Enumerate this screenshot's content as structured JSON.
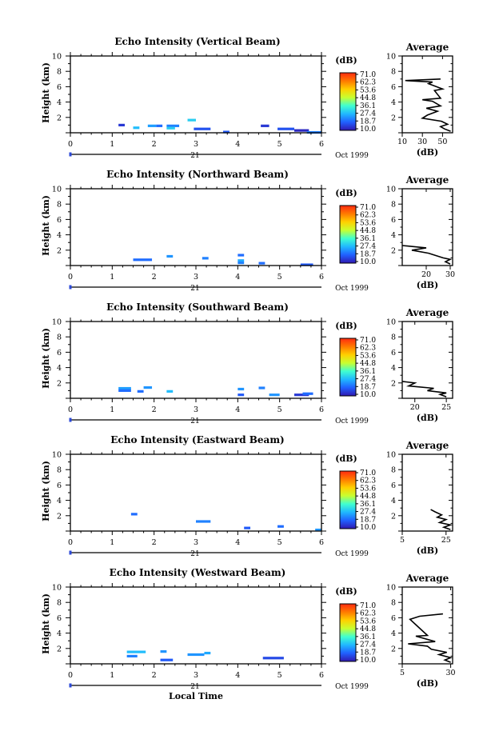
{
  "figure": {
    "ylabel": "Height (km)",
    "xlabel_bottom": "Local Time",
    "colorbar_unit": "(dB)",
    "colorbar_ticks": [
      "71.0",
      "62.3",
      "53.6",
      "44.8",
      "36.1",
      "27.4",
      "18.7",
      "10.0"
    ],
    "colorbar_colors": [
      "#ff2a10",
      "#ff7a00",
      "#ffd000",
      "#c8ff30",
      "#40ffd0",
      "#20b8ff",
      "#2060ff",
      "#3018b0"
    ],
    "date_day": "21",
    "date_month_year": "Oct 1999",
    "avg_title": "Average",
    "avg_xlabel": "(dB)",
    "line_color": "#000000"
  },
  "chart_data": [
    {
      "type": "heatmap",
      "title": "Echo Intensity (Vertical Beam)",
      "ylabel": "Height (km)",
      "xlim": [
        0,
        6
      ],
      "ylim": [
        0,
        10
      ],
      "xticks": [
        "0",
        "1",
        "2",
        "3",
        "4",
        "5",
        "6"
      ],
      "yticks": [
        "2",
        "4",
        "6",
        "8",
        "10"
      ],
      "colorbar": {
        "label": "(dB)",
        "min": 10.0,
        "max": 71.0
      },
      "echoes": [
        {
          "t0": 1.15,
          "t1": 1.3,
          "h": 1.0,
          "db": 14
        },
        {
          "t0": 1.5,
          "t1": 1.65,
          "h": 0.65,
          "db": 28
        },
        {
          "t0": 1.85,
          "t1": 2.05,
          "h": 0.9,
          "db": 25
        },
        {
          "t0": 2.05,
          "t1": 2.2,
          "h": 0.9,
          "db": 20
        },
        {
          "t0": 2.3,
          "t1": 2.6,
          "h": 0.9,
          "db": 22
        },
        {
          "t0": 2.3,
          "t1": 2.5,
          "h": 0.6,
          "db": 30
        },
        {
          "t0": 2.8,
          "t1": 3.0,
          "h": 1.65,
          "db": 30
        },
        {
          "t0": 2.95,
          "t1": 3.35,
          "h": 0.5,
          "db": 17
        },
        {
          "t0": 3.65,
          "t1": 3.8,
          "h": 0.1,
          "db": 18
        },
        {
          "t0": 4.55,
          "t1": 4.75,
          "h": 0.9,
          "db": 14
        },
        {
          "t0": 4.95,
          "t1": 5.35,
          "h": 0.5,
          "db": 17
        },
        {
          "t0": 5.35,
          "t1": 5.7,
          "h": 0.3,
          "db": 12
        },
        {
          "t0": 5.65,
          "t1": 6.0,
          "h": 0.05,
          "db": 22
        }
      ],
      "average": {
        "title": "Average",
        "xlabel": "(dB)",
        "xlim": [
          10,
          60
        ],
        "xticks": [
          "10",
          "30",
          "50"
        ],
        "yticks": [
          "2",
          "4",
          "6",
          "8",
          "10"
        ],
        "profile": [
          {
            "db": 58,
            "h": 0.2
          },
          {
            "db": 52,
            "h": 0.5
          },
          {
            "db": 48,
            "h": 0.8
          },
          {
            "db": 55,
            "h": 1.1
          },
          {
            "db": 49,
            "h": 1.5
          },
          {
            "db": 30,
            "h": 1.9
          },
          {
            "db": 35,
            "h": 2.3
          },
          {
            "db": 45,
            "h": 2.8
          },
          {
            "db": 34,
            "h": 3.2
          },
          {
            "db": 48,
            "h": 3.5
          },
          {
            "db": 40,
            "h": 4.1
          },
          {
            "db": 30,
            "h": 4.3
          },
          {
            "db": 48,
            "h": 4.5
          },
          {
            "db": 42,
            "h": 5.5
          },
          {
            "db": 50,
            "h": 5.7
          },
          {
            "db": 36,
            "h": 6.4
          },
          {
            "db": 40,
            "h": 6.6
          },
          {
            "db": 13,
            "h": 6.8
          },
          {
            "db": 48,
            "h": 7.0
          }
        ]
      }
    },
    {
      "type": "heatmap",
      "title": "Echo Intensity (Northward Beam)",
      "ylabel": "Height (km)",
      "xlim": [
        0,
        6
      ],
      "ylim": [
        0,
        10
      ],
      "xticks": [
        "0",
        "1",
        "2",
        "3",
        "4",
        "5",
        "6"
      ],
      "yticks": [
        "2",
        "4",
        "6",
        "8",
        "10"
      ],
      "colorbar": {
        "label": "(dB)",
        "min": 10.0,
        "max": 71.0
      },
      "echoes": [
        {
          "t0": 1.5,
          "t1": 1.95,
          "h": 0.75,
          "db": 20
        },
        {
          "t0": 2.3,
          "t1": 2.45,
          "h": 1.2,
          "db": 24
        },
        {
          "t0": 3.15,
          "t1": 3.3,
          "h": 0.95,
          "db": 22
        },
        {
          "t0": 4.0,
          "t1": 4.15,
          "h": 1.35,
          "db": 20
        },
        {
          "t0": 4.0,
          "t1": 4.15,
          "h": 0.65,
          "db": 26
        },
        {
          "t0": 4.0,
          "t1": 4.15,
          "h": 0.35,
          "db": 22
        },
        {
          "t0": 4.5,
          "t1": 4.65,
          "h": 0.3,
          "db": 20
        },
        {
          "t0": 5.5,
          "t1": 5.8,
          "h": 0.1,
          "db": 18
        }
      ],
      "average": {
        "title": "Average",
        "xlabel": "(dB)",
        "xlim": [
          10,
          31
        ],
        "xticks": [
          "20",
          "30"
        ],
        "yticks": [
          "2",
          "4",
          "6",
          "8",
          "10"
        ],
        "profile": [
          {
            "db": 30,
            "h": 0.2
          },
          {
            "db": 28,
            "h": 0.5
          },
          {
            "db": 30,
            "h": 0.8
          },
          {
            "db": 27,
            "h": 1.0
          },
          {
            "db": 24,
            "h": 1.3
          },
          {
            "db": 21,
            "h": 1.6
          },
          {
            "db": 14,
            "h": 2.0
          },
          {
            "db": 20,
            "h": 2.3
          },
          {
            "db": 10,
            "h": 2.6
          }
        ]
      }
    },
    {
      "type": "heatmap",
      "title": "Echo Intensity (Southward Beam)",
      "ylabel": "Height (km)",
      "xlim": [
        0,
        6
      ],
      "ylim": [
        0,
        10
      ],
      "xticks": [
        "0",
        "1",
        "2",
        "3",
        "4",
        "5",
        "6"
      ],
      "yticks": [
        "2",
        "4",
        "6",
        "8",
        "10"
      ],
      "colorbar": {
        "label": "(dB)",
        "min": 10.0,
        "max": 71.0
      },
      "echoes": [
        {
          "t0": 1.15,
          "t1": 1.45,
          "h": 1.3,
          "db": 25
        },
        {
          "t0": 1.15,
          "t1": 1.45,
          "h": 1.0,
          "db": 20
        },
        {
          "t0": 1.6,
          "t1": 1.75,
          "h": 0.9,
          "db": 20
        },
        {
          "t0": 1.75,
          "t1": 1.95,
          "h": 1.4,
          "db": 24
        },
        {
          "t0": 2.3,
          "t1": 2.45,
          "h": 0.9,
          "db": 28
        },
        {
          "t0": 4.0,
          "t1": 4.15,
          "h": 1.2,
          "db": 24
        },
        {
          "t0": 4.0,
          "t1": 4.15,
          "h": 0.45,
          "db": 18
        },
        {
          "t0": 4.5,
          "t1": 4.65,
          "h": 1.35,
          "db": 22
        },
        {
          "t0": 4.75,
          "t1": 5.0,
          "h": 0.45,
          "db": 24
        },
        {
          "t0": 5.35,
          "t1": 5.7,
          "h": 0.45,
          "db": 14
        },
        {
          "t0": 5.55,
          "t1": 5.8,
          "h": 0.6,
          "db": 20
        }
      ],
      "average": {
        "title": "Average",
        "xlabel": "(dB)",
        "xlim": [
          18,
          26
        ],
        "xticks": [
          "20",
          "25"
        ],
        "yticks": [
          "2",
          "4",
          "6",
          "8",
          "10"
        ],
        "profile": [
          {
            "db": 25,
            "h": 0.2
          },
          {
            "db": 24,
            "h": 0.5
          },
          {
            "db": 25,
            "h": 0.7
          },
          {
            "db": 22,
            "h": 1.0
          },
          {
            "db": 23,
            "h": 1.3
          },
          {
            "db": 19,
            "h": 1.6
          },
          {
            "db": 20,
            "h": 2.0
          },
          {
            "db": 18,
            "h": 2.2
          }
        ]
      }
    },
    {
      "type": "heatmap",
      "title": "Echo Intensity (Eastward Beam)",
      "ylabel": "Height (km)",
      "xlim": [
        0,
        6
      ],
      "ylim": [
        0,
        10
      ],
      "xticks": [
        "0",
        "1",
        "2",
        "3",
        "4",
        "5",
        "6"
      ],
      "yticks": [
        "2",
        "4",
        "6",
        "8",
        "10"
      ],
      "colorbar": {
        "label": "(dB)",
        "min": 10.0,
        "max": 71.0
      },
      "echoes": [
        {
          "t0": 1.45,
          "t1": 1.6,
          "h": 2.2,
          "db": 20
        },
        {
          "t0": 3.0,
          "t1": 3.35,
          "h": 1.25,
          "db": 22
        },
        {
          "t0": 4.15,
          "t1": 4.3,
          "h": 0.4,
          "db": 18
        },
        {
          "t0": 4.95,
          "t1": 5.1,
          "h": 0.6,
          "db": 20
        },
        {
          "t0": 5.85,
          "t1": 6.0,
          "h": 0.15,
          "db": 24
        }
      ],
      "average": {
        "title": "Average",
        "xlabel": "(dB)",
        "xlim": [
          5,
          28
        ],
        "xticks": [
          "5",
          "25"
        ],
        "yticks": [
          "2",
          "4",
          "6",
          "8",
          "10"
        ],
        "profile": [
          {
            "db": 27,
            "h": 0.2
          },
          {
            "db": 24,
            "h": 0.5
          },
          {
            "db": 27,
            "h": 0.8
          },
          {
            "db": 22,
            "h": 1.1
          },
          {
            "db": 25,
            "h": 1.5
          },
          {
            "db": 21,
            "h": 1.8
          },
          {
            "db": 23,
            "h": 2.1
          },
          {
            "db": 20,
            "h": 2.5
          },
          {
            "db": 18,
            "h": 2.8
          }
        ]
      }
    },
    {
      "type": "heatmap",
      "title": "Echo Intensity (Westward Beam)",
      "ylabel": "Height (km)",
      "xlim": [
        0,
        6
      ],
      "ylim": [
        0,
        10
      ],
      "xticks": [
        "0",
        "1",
        "2",
        "3",
        "4",
        "5",
        "6"
      ],
      "yticks": [
        "2",
        "4",
        "6",
        "8",
        "10"
      ],
      "colorbar": {
        "label": "(dB)",
        "min": 10.0,
        "max": 71.0
      },
      "echoes": [
        {
          "t0": 1.35,
          "t1": 1.8,
          "h": 1.55,
          "db": 28
        },
        {
          "t0": 1.35,
          "t1": 1.6,
          "h": 1.0,
          "db": 22
        },
        {
          "t0": 2.15,
          "t1": 2.3,
          "h": 1.6,
          "db": 24
        },
        {
          "t0": 2.15,
          "t1": 2.45,
          "h": 0.5,
          "db": 18
        },
        {
          "t0": 2.8,
          "t1": 3.2,
          "h": 1.2,
          "db": 24
        },
        {
          "t0": 3.2,
          "t1": 3.35,
          "h": 1.4,
          "db": 26
        },
        {
          "t0": 4.6,
          "t1": 5.1,
          "h": 0.75,
          "db": 16
        }
      ],
      "average": {
        "title": "Average",
        "xlabel": "(dB)",
        "xlim": [
          5,
          31
        ],
        "xticks": [
          "5",
          "30"
        ],
        "yticks": [
          "2",
          "4",
          "6",
          "8",
          "10"
        ],
        "profile": [
          {
            "db": 30,
            "h": 0.2
          },
          {
            "db": 27,
            "h": 0.5
          },
          {
            "db": 30,
            "h": 0.8
          },
          {
            "db": 24,
            "h": 1.2
          },
          {
            "db": 28,
            "h": 1.5
          },
          {
            "db": 20,
            "h": 1.9
          },
          {
            "db": 18,
            "h": 2.3
          },
          {
            "db": 8,
            "h": 2.6
          },
          {
            "db": 22,
            "h": 2.9
          },
          {
            "db": 12,
            "h": 3.6
          },
          {
            "db": 18,
            "h": 3.7
          },
          {
            "db": 9,
            "h": 5.8
          },
          {
            "db": 14,
            "h": 6.2
          },
          {
            "db": 26,
            "h": 6.5
          }
        ]
      }
    }
  ]
}
